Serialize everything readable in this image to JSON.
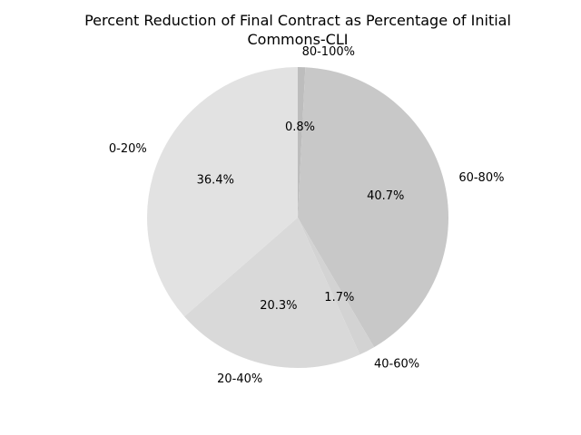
{
  "chart_data": {
    "type": "pie",
    "title_lines": [
      "Percent Reduction of Final Contract as Percentage of Initial",
      "Commons-CLI"
    ],
    "categories": [
      "80-100%",
      "60-80%",
      "40-60%",
      "20-40%",
      "0-20%"
    ],
    "values": [
      0.8,
      40.7,
      1.7,
      20.3,
      36.4
    ],
    "value_labels": [
      "0.8%",
      "40.7%",
      "1.7%",
      "20.3%",
      "36.4%"
    ],
    "colors": [
      "#bdbdbd",
      "#c8c8c8",
      "#d3d3d3",
      "#d9d9d9",
      "#e2e2e2"
    ],
    "start_angle_deg": 90,
    "direction": "clockwise",
    "legend": "none"
  }
}
